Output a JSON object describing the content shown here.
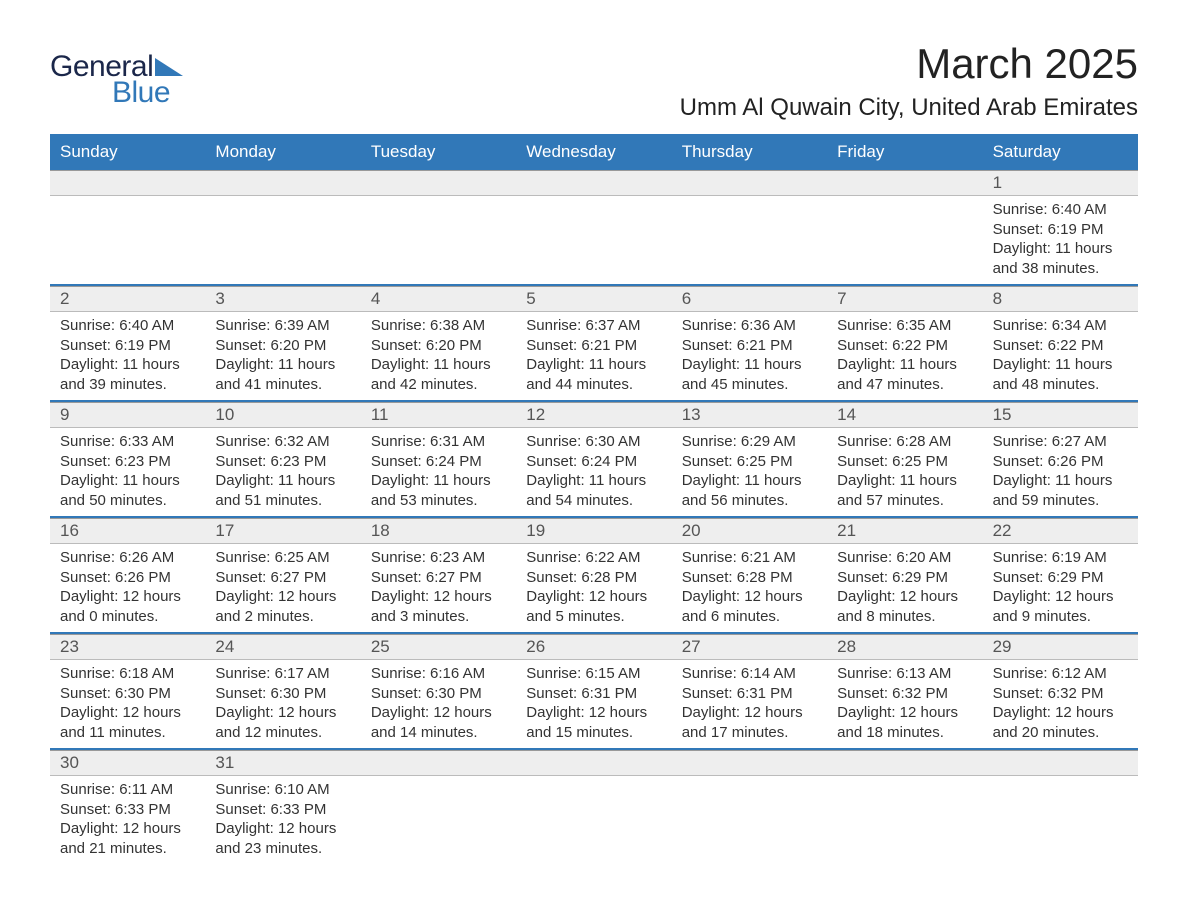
{
  "logo": {
    "word1": "General",
    "word2": "Blue"
  },
  "title": "March 2025",
  "location": "Umm Al Quwain City, United Arab Emirates",
  "colors": {
    "header_bg": "#3178b8",
    "header_fg": "#ffffff",
    "daynum_bg": "#eeeeee",
    "week_divider": "#3178b8",
    "text": "#333333",
    "logo_dark": "#1b274a",
    "logo_blue": "#3178b8"
  },
  "day_labels": [
    "Sunday",
    "Monday",
    "Tuesday",
    "Wednesday",
    "Thursday",
    "Friday",
    "Saturday"
  ],
  "weeks": [
    [
      {
        "num": "",
        "sunrise": "",
        "sunset": "",
        "daylight1": "",
        "daylight2": ""
      },
      {
        "num": "",
        "sunrise": "",
        "sunset": "",
        "daylight1": "",
        "daylight2": ""
      },
      {
        "num": "",
        "sunrise": "",
        "sunset": "",
        "daylight1": "",
        "daylight2": ""
      },
      {
        "num": "",
        "sunrise": "",
        "sunset": "",
        "daylight1": "",
        "daylight2": ""
      },
      {
        "num": "",
        "sunrise": "",
        "sunset": "",
        "daylight1": "",
        "daylight2": ""
      },
      {
        "num": "",
        "sunrise": "",
        "sunset": "",
        "daylight1": "",
        "daylight2": ""
      },
      {
        "num": "1",
        "sunrise": "Sunrise: 6:40 AM",
        "sunset": "Sunset: 6:19 PM",
        "daylight1": "Daylight: 11 hours",
        "daylight2": "and 38 minutes."
      }
    ],
    [
      {
        "num": "2",
        "sunrise": "Sunrise: 6:40 AM",
        "sunset": "Sunset: 6:19 PM",
        "daylight1": "Daylight: 11 hours",
        "daylight2": "and 39 minutes."
      },
      {
        "num": "3",
        "sunrise": "Sunrise: 6:39 AM",
        "sunset": "Sunset: 6:20 PM",
        "daylight1": "Daylight: 11 hours",
        "daylight2": "and 41 minutes."
      },
      {
        "num": "4",
        "sunrise": "Sunrise: 6:38 AM",
        "sunset": "Sunset: 6:20 PM",
        "daylight1": "Daylight: 11 hours",
        "daylight2": "and 42 minutes."
      },
      {
        "num": "5",
        "sunrise": "Sunrise: 6:37 AM",
        "sunset": "Sunset: 6:21 PM",
        "daylight1": "Daylight: 11 hours",
        "daylight2": "and 44 minutes."
      },
      {
        "num": "6",
        "sunrise": "Sunrise: 6:36 AM",
        "sunset": "Sunset: 6:21 PM",
        "daylight1": "Daylight: 11 hours",
        "daylight2": "and 45 minutes."
      },
      {
        "num": "7",
        "sunrise": "Sunrise: 6:35 AM",
        "sunset": "Sunset: 6:22 PM",
        "daylight1": "Daylight: 11 hours",
        "daylight2": "and 47 minutes."
      },
      {
        "num": "8",
        "sunrise": "Sunrise: 6:34 AM",
        "sunset": "Sunset: 6:22 PM",
        "daylight1": "Daylight: 11 hours",
        "daylight2": "and 48 minutes."
      }
    ],
    [
      {
        "num": "9",
        "sunrise": "Sunrise: 6:33 AM",
        "sunset": "Sunset: 6:23 PM",
        "daylight1": "Daylight: 11 hours",
        "daylight2": "and 50 minutes."
      },
      {
        "num": "10",
        "sunrise": "Sunrise: 6:32 AM",
        "sunset": "Sunset: 6:23 PM",
        "daylight1": "Daylight: 11 hours",
        "daylight2": "and 51 minutes."
      },
      {
        "num": "11",
        "sunrise": "Sunrise: 6:31 AM",
        "sunset": "Sunset: 6:24 PM",
        "daylight1": "Daylight: 11 hours",
        "daylight2": "and 53 minutes."
      },
      {
        "num": "12",
        "sunrise": "Sunrise: 6:30 AM",
        "sunset": "Sunset: 6:24 PM",
        "daylight1": "Daylight: 11 hours",
        "daylight2": "and 54 minutes."
      },
      {
        "num": "13",
        "sunrise": "Sunrise: 6:29 AM",
        "sunset": "Sunset: 6:25 PM",
        "daylight1": "Daylight: 11 hours",
        "daylight2": "and 56 minutes."
      },
      {
        "num": "14",
        "sunrise": "Sunrise: 6:28 AM",
        "sunset": "Sunset: 6:25 PM",
        "daylight1": "Daylight: 11 hours",
        "daylight2": "and 57 minutes."
      },
      {
        "num": "15",
        "sunrise": "Sunrise: 6:27 AM",
        "sunset": "Sunset: 6:26 PM",
        "daylight1": "Daylight: 11 hours",
        "daylight2": "and 59 minutes."
      }
    ],
    [
      {
        "num": "16",
        "sunrise": "Sunrise: 6:26 AM",
        "sunset": "Sunset: 6:26 PM",
        "daylight1": "Daylight: 12 hours",
        "daylight2": "and 0 minutes."
      },
      {
        "num": "17",
        "sunrise": "Sunrise: 6:25 AM",
        "sunset": "Sunset: 6:27 PM",
        "daylight1": "Daylight: 12 hours",
        "daylight2": "and 2 minutes."
      },
      {
        "num": "18",
        "sunrise": "Sunrise: 6:23 AM",
        "sunset": "Sunset: 6:27 PM",
        "daylight1": "Daylight: 12 hours",
        "daylight2": "and 3 minutes."
      },
      {
        "num": "19",
        "sunrise": "Sunrise: 6:22 AM",
        "sunset": "Sunset: 6:28 PM",
        "daylight1": "Daylight: 12 hours",
        "daylight2": "and 5 minutes."
      },
      {
        "num": "20",
        "sunrise": "Sunrise: 6:21 AM",
        "sunset": "Sunset: 6:28 PM",
        "daylight1": "Daylight: 12 hours",
        "daylight2": "and 6 minutes."
      },
      {
        "num": "21",
        "sunrise": "Sunrise: 6:20 AM",
        "sunset": "Sunset: 6:29 PM",
        "daylight1": "Daylight: 12 hours",
        "daylight2": "and 8 minutes."
      },
      {
        "num": "22",
        "sunrise": "Sunrise: 6:19 AM",
        "sunset": "Sunset: 6:29 PM",
        "daylight1": "Daylight: 12 hours",
        "daylight2": "and 9 minutes."
      }
    ],
    [
      {
        "num": "23",
        "sunrise": "Sunrise: 6:18 AM",
        "sunset": "Sunset: 6:30 PM",
        "daylight1": "Daylight: 12 hours",
        "daylight2": "and 11 minutes."
      },
      {
        "num": "24",
        "sunrise": "Sunrise: 6:17 AM",
        "sunset": "Sunset: 6:30 PM",
        "daylight1": "Daylight: 12 hours",
        "daylight2": "and 12 minutes."
      },
      {
        "num": "25",
        "sunrise": "Sunrise: 6:16 AM",
        "sunset": "Sunset: 6:30 PM",
        "daylight1": "Daylight: 12 hours",
        "daylight2": "and 14 minutes."
      },
      {
        "num": "26",
        "sunrise": "Sunrise: 6:15 AM",
        "sunset": "Sunset: 6:31 PM",
        "daylight1": "Daylight: 12 hours",
        "daylight2": "and 15 minutes."
      },
      {
        "num": "27",
        "sunrise": "Sunrise: 6:14 AM",
        "sunset": "Sunset: 6:31 PM",
        "daylight1": "Daylight: 12 hours",
        "daylight2": "and 17 minutes."
      },
      {
        "num": "28",
        "sunrise": "Sunrise: 6:13 AM",
        "sunset": "Sunset: 6:32 PM",
        "daylight1": "Daylight: 12 hours",
        "daylight2": "and 18 minutes."
      },
      {
        "num": "29",
        "sunrise": "Sunrise: 6:12 AM",
        "sunset": "Sunset: 6:32 PM",
        "daylight1": "Daylight: 12 hours",
        "daylight2": "and 20 minutes."
      }
    ],
    [
      {
        "num": "30",
        "sunrise": "Sunrise: 6:11 AM",
        "sunset": "Sunset: 6:33 PM",
        "daylight1": "Daylight: 12 hours",
        "daylight2": "and 21 minutes."
      },
      {
        "num": "31",
        "sunrise": "Sunrise: 6:10 AM",
        "sunset": "Sunset: 6:33 PM",
        "daylight1": "Daylight: 12 hours",
        "daylight2": "and 23 minutes."
      },
      {
        "num": "",
        "sunrise": "",
        "sunset": "",
        "daylight1": "",
        "daylight2": ""
      },
      {
        "num": "",
        "sunrise": "",
        "sunset": "",
        "daylight1": "",
        "daylight2": ""
      },
      {
        "num": "",
        "sunrise": "",
        "sunset": "",
        "daylight1": "",
        "daylight2": ""
      },
      {
        "num": "",
        "sunrise": "",
        "sunset": "",
        "daylight1": "",
        "daylight2": ""
      },
      {
        "num": "",
        "sunrise": "",
        "sunset": "",
        "daylight1": "",
        "daylight2": ""
      }
    ]
  ]
}
